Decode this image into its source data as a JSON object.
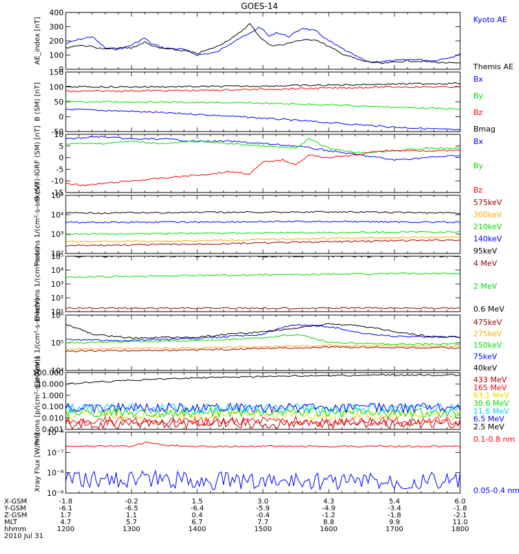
{
  "title": "GOES-14",
  "colors": {
    "black": "#000000",
    "blue": "#0000ff",
    "red": "#ff0000",
    "green": "#00dd00",
    "orange": "#ffaa00",
    "darkred": "#990000",
    "cyan": "#00ccff",
    "purple": "#aa00aa",
    "yellow": "#dddd00",
    "dkred2": "#aa0000"
  },
  "time_axis": {
    "row_labels": [
      "X-GSM",
      "Y-GSM",
      "Z-GSM",
      "MLT",
      "hhmm",
      "2010 Jul 31"
    ],
    "columns": [
      [
        "-1.8",
        "-6.1",
        "1.7",
        "4.7",
        "1200"
      ],
      [
        "-0.2",
        "-6.5",
        "1.1",
        "5.7",
        "1300"
      ],
      [
        "1.5",
        "-6.4",
        "0.4",
        "6.7",
        "1400"
      ],
      [
        "3.0",
        "-5.9",
        "-0.4",
        "7.7",
        "1500"
      ],
      [
        "4.3",
        "-4.9",
        "-1.2",
        "8.8",
        "1600"
      ],
      [
        "5.4",
        "-3.4",
        "-1.8",
        "9.9",
        "1700"
      ],
      [
        "6.0",
        "-1.8",
        "-2.1",
        "11.0",
        "1800"
      ]
    ]
  },
  "chart_data": [
    {
      "type": "line",
      "ylabel": "AE_index [nT]",
      "ylim": [
        0,
        400
      ],
      "yticks": [
        "0",
        "100",
        "200",
        "300",
        "400"
      ],
      "legend": [
        "Kyoto AE",
        "Themis AE"
      ],
      "series": [
        {
          "name": "Kyoto AE",
          "color": "#0000ff",
          "x": [
            12.0,
            12.2,
            12.4,
            12.6,
            12.8,
            13.0,
            13.2,
            13.3,
            13.5,
            13.8,
            14.0,
            14.3,
            14.6,
            14.8,
            14.95,
            15.1,
            15.2,
            15.4,
            15.6,
            15.8,
            16.0,
            16.3,
            16.6,
            17.0,
            17.3,
            17.6,
            17.9,
            18.0
          ],
          "y": [
            180,
            210,
            230,
            150,
            140,
            170,
            220,
            180,
            150,
            140,
            100,
            120,
            210,
            250,
            300,
            230,
            260,
            230,
            290,
            270,
            200,
            120,
            50,
            60,
            70,
            60,
            90,
            110
          ]
        },
        {
          "name": "Themis AE",
          "color": "#000000",
          "x": [
            12.0,
            12.2,
            12.4,
            12.6,
            12.8,
            13.0,
            13.2,
            13.4,
            13.6,
            13.8,
            14.0,
            14.3,
            14.6,
            14.8,
            14.95,
            15.1,
            15.3,
            15.5,
            15.8,
            16.0,
            16.2,
            16.5,
            16.8,
            17.2,
            17.6,
            18.0
          ],
          "y": [
            150,
            170,
            160,
            140,
            150,
            150,
            190,
            150,
            140,
            130,
            110,
            160,
            240,
            320,
            230,
            170,
            170,
            200,
            210,
            160,
            110,
            60,
            40,
            60,
            50,
            40
          ]
        }
      ]
    },
    {
      "type": "line",
      "ylabel": "B (SM) [nT]",
      "ylim": [
        -50,
        150
      ],
      "yticks": [
        "-50",
        "0",
        "50",
        "100",
        "150"
      ],
      "legend": [
        "Bx",
        "By",
        "Bz",
        "Bmag"
      ],
      "series": [
        {
          "name": "Bx",
          "color": "#0000ff",
          "x": [
            12,
            13,
            14,
            15,
            16,
            17,
            18
          ],
          "y": [
            25,
            18,
            8,
            -5,
            -20,
            -35,
            -45
          ]
        },
        {
          "name": "By",
          "color": "#00dd00",
          "x": [
            12,
            13,
            14,
            15,
            16,
            17,
            18
          ],
          "y": [
            50,
            50,
            48,
            45,
            40,
            32,
            25
          ]
        },
        {
          "name": "Bz",
          "color": "#ff0000",
          "x": [
            12,
            13,
            14,
            15,
            16,
            17,
            18
          ],
          "y": [
            85,
            87,
            88,
            92,
            96,
            100,
            100
          ]
        },
        {
          "name": "Bmag",
          "color": "#000000",
          "x": [
            12,
            13,
            14,
            15,
            16,
            17,
            18
          ],
          "y": [
            100,
            100,
            101,
            103,
            106,
            110,
            112
          ]
        }
      ]
    },
    {
      "type": "line",
      "ylabel": "B (SM)-IGRF (SM) [nT]",
      "ylim": [
        -15,
        10
      ],
      "yticks": [
        "-15",
        "-10",
        "-5",
        "0",
        "5",
        "10"
      ],
      "legend": [
        "Bx",
        "By",
        "Bz"
      ],
      "series": [
        {
          "name": "Bx",
          "color": "#0000ff",
          "x": [
            12,
            12.5,
            13,
            13.5,
            14,
            14.5,
            15,
            15.5,
            16,
            16.5,
            17,
            17.5,
            18
          ],
          "y": [
            8,
            9,
            8,
            8,
            7,
            7,
            6,
            5,
            3,
            1,
            -1,
            0,
            1
          ]
        },
        {
          "name": "By",
          "color": "#00dd00",
          "x": [
            12,
            12.5,
            13,
            13.5,
            14,
            14.5,
            15,
            15.5,
            15.7,
            16,
            16.5,
            17,
            17.5,
            18
          ],
          "y": [
            6,
            6,
            7,
            6,
            7,
            6,
            5,
            4,
            8,
            4,
            2,
            3,
            4,
            4
          ]
        },
        {
          "name": "Bz",
          "color": "#ff0000",
          "x": [
            12,
            12.3,
            12.6,
            13,
            13.4,
            13.8,
            14.2,
            14.5,
            14.8,
            15,
            15.3,
            15.5,
            15.7,
            16,
            16.4,
            16.8,
            17.2,
            17.6,
            18
          ],
          "y": [
            -11,
            -12,
            -11,
            -10,
            -9,
            -8,
            -7,
            -6,
            -7,
            -2,
            -1,
            -3,
            1,
            0,
            1,
            3,
            3,
            3,
            3
          ]
        }
      ]
    },
    {
      "type": "line",
      "ylabel": "Protons 1/(cm²-s-sr-keV)",
      "scale": "log",
      "ylim": [
        100,
        100000
      ],
      "yticks": [
        "10²",
        "10³",
        "10⁴",
        "10⁵"
      ],
      "legend": [
        "575keV",
        "300keV",
        "210keV",
        "140keV",
        "95keV"
      ],
      "series": [
        {
          "name": "575keV",
          "color": "#990000",
          "x": [
            12,
            14,
            16,
            18
          ],
          "y": [
            250,
            300,
            400,
            500
          ]
        },
        {
          "name": "300keV",
          "color": "#ffaa00",
          "x": [
            12,
            14,
            16,
            18
          ],
          "y": [
            400,
            450,
            600,
            700
          ]
        },
        {
          "name": "210keV",
          "color": "#00dd00",
          "x": [
            12,
            14,
            16,
            18
          ],
          "y": [
            1000,
            1100,
            1200,
            1300
          ]
        },
        {
          "name": "140keV",
          "color": "#0000ff",
          "x": [
            12,
            14,
            16,
            18
          ],
          "y": [
            4000,
            4200,
            4500,
            4000
          ]
        },
        {
          "name": "95keV",
          "color": "#000000",
          "x": [
            12,
            14,
            16,
            18
          ],
          "y": [
            12000,
            13000,
            14000,
            12000
          ]
        }
      ]
    },
    {
      "type": "line",
      "ylabel": "Electrons 1/(cm²-s-sr)",
      "scale": "log",
      "ylim": [
        10,
        100000
      ],
      "yticks": [
        "10¹",
        "10²",
        "10³",
        "10⁴",
        "10⁵"
      ],
      "legend": [
        "4 MeV",
        "2 MeV",
        "0.6 MeV"
      ],
      "series": [
        {
          "name": "4 MeV",
          "color": "#990000",
          "x": [
            12,
            14,
            16,
            18
          ],
          "y": [
            18,
            18,
            18,
            18
          ]
        },
        {
          "name": "2 MeV",
          "color": "#00dd00",
          "x": [
            12,
            14,
            16,
            18
          ],
          "y": [
            3000,
            4000,
            5000,
            6000
          ]
        },
        {
          "name": "0.6 MeV",
          "color": "#000000",
          "x": [
            12,
            14,
            16,
            18
          ],
          "y": [
            100000,
            100000,
            100000,
            100000
          ]
        }
      ]
    },
    {
      "type": "line",
      "ylabel": "Electrons 1/(cm²-s-sr-keV)",
      "scale": "log",
      "ylim": [
        10000,
        1000000
      ],
      "yticks": [
        "10⁴",
        "10⁵",
        "10⁶"
      ],
      "legend": [
        "475keV",
        "275keV",
        "150keV",
        "75keV",
        "40keV"
      ],
      "series": [
        {
          "name": "475keV",
          "color": "#990000",
          "x": [
            12,
            14,
            16,
            18
          ],
          "y": [
            50000,
            55000,
            70000,
            65000
          ]
        },
        {
          "name": "275keV",
          "color": "#ffaa00",
          "x": [
            12,
            14,
            16,
            18
          ],
          "y": [
            60000,
            65000,
            80000,
            75000
          ]
        },
        {
          "name": "150keV",
          "color": "#00dd00",
          "x": [
            12,
            13,
            14,
            15,
            15.5,
            16,
            17,
            18
          ],
          "y": [
            100000,
            110000,
            120000,
            150000,
            200000,
            100000,
            90000,
            90000
          ]
        },
        {
          "name": "75keV",
          "color": "#0000ff",
          "x": [
            12,
            13,
            14,
            15,
            15.5,
            16,
            16.5,
            17,
            18
          ],
          "y": [
            130000,
            120000,
            140000,
            200000,
            450000,
            380000,
            220000,
            170000,
            160000
          ]
        },
        {
          "name": "40keV",
          "color": "#000000",
          "x": [
            12,
            12.4,
            13,
            14,
            15,
            15.6,
            16,
            16.5,
            17,
            17.5,
            18
          ],
          "y": [
            450000,
            200000,
            150000,
            160000,
            250000,
            350000,
            480000,
            400000,
            250000,
            170000,
            160000
          ]
        }
      ]
    },
    {
      "type": "line",
      "ylabel": "Protons [p/(cm²-s-sr-keV)]",
      "scale": "log",
      "ylim": [
        0.001,
        100
      ],
      "yticks": [
        "0.001",
        "0.010",
        "0.100",
        "1.000",
        "10.000",
        "100.000"
      ],
      "legend": [
        "433 MeV",
        "165 MeV",
        "63.1 MeV",
        "30.6 MeV",
        "11.6 MeV",
        "6.5 MeV",
        "2.5 MeV"
      ],
      "series": [
        {
          "name": "433 MeV",
          "color": "#aa0000",
          "x": [
            12,
            18
          ],
          "y": [
            0.003,
            0.003
          ]
        },
        {
          "name": "165 MeV",
          "color": "#ff0000",
          "x": [
            12,
            18
          ],
          "y": [
            0.005,
            0.005
          ]
        },
        {
          "name": "63.1 MeV",
          "color": "#dddd00",
          "x": [
            12,
            18
          ],
          "y": [
            0.02,
            0.02
          ]
        },
        {
          "name": "30.6 MeV",
          "color": "#00dd00",
          "x": [
            12,
            18
          ],
          "y": [
            0.03,
            0.03
          ]
        },
        {
          "name": "11.6 MeV",
          "color": "#00ccff",
          "x": [
            12,
            18
          ],
          "y": [
            0.07,
            0.07
          ]
        },
        {
          "name": "6.5 MeV",
          "color": "#0000ff",
          "x": [
            12,
            18
          ],
          "y": [
            0.08,
            0.08
          ]
        },
        {
          "name": "2.5 MeV",
          "color": "#000000",
          "x": [
            12,
            13,
            14,
            15,
            16,
            17,
            18
          ],
          "y": [
            10,
            20,
            35,
            45,
            55,
            60,
            60
          ]
        }
      ]
    },
    {
      "type": "line",
      "ylabel": "Xray Flux [W/m²]",
      "scale": "log",
      "ylim": [
        1e-09,
        1e-06
      ],
      "yticks": [
        "10⁻⁹",
        "10⁻⁸",
        "10⁻⁷",
        "10⁻⁶"
      ],
      "legend": [
        "0.1-0.8 nm",
        "0.05-0.4 nm"
      ],
      "series": [
        {
          "name": "0.1-0.8 nm",
          "color": "#ff0000",
          "x": [
            12,
            13,
            13.2,
            13.6,
            14,
            15,
            16,
            17,
            18
          ],
          "y": [
            2e-07,
            2e-07,
            3e-07,
            2.2e-07,
            2e-07,
            2e-07,
            2e-07,
            2e-07,
            2e-07
          ]
        },
        {
          "name": "0.05-0.4 nm",
          "color": "#0000ff",
          "x": [
            12,
            13,
            14,
            15,
            16,
            17,
            18
          ],
          "y": [
            4e-09,
            5e-09,
            4e-09,
            4e-09,
            4e-09,
            4e-09,
            4e-09
          ]
        }
      ]
    }
  ]
}
